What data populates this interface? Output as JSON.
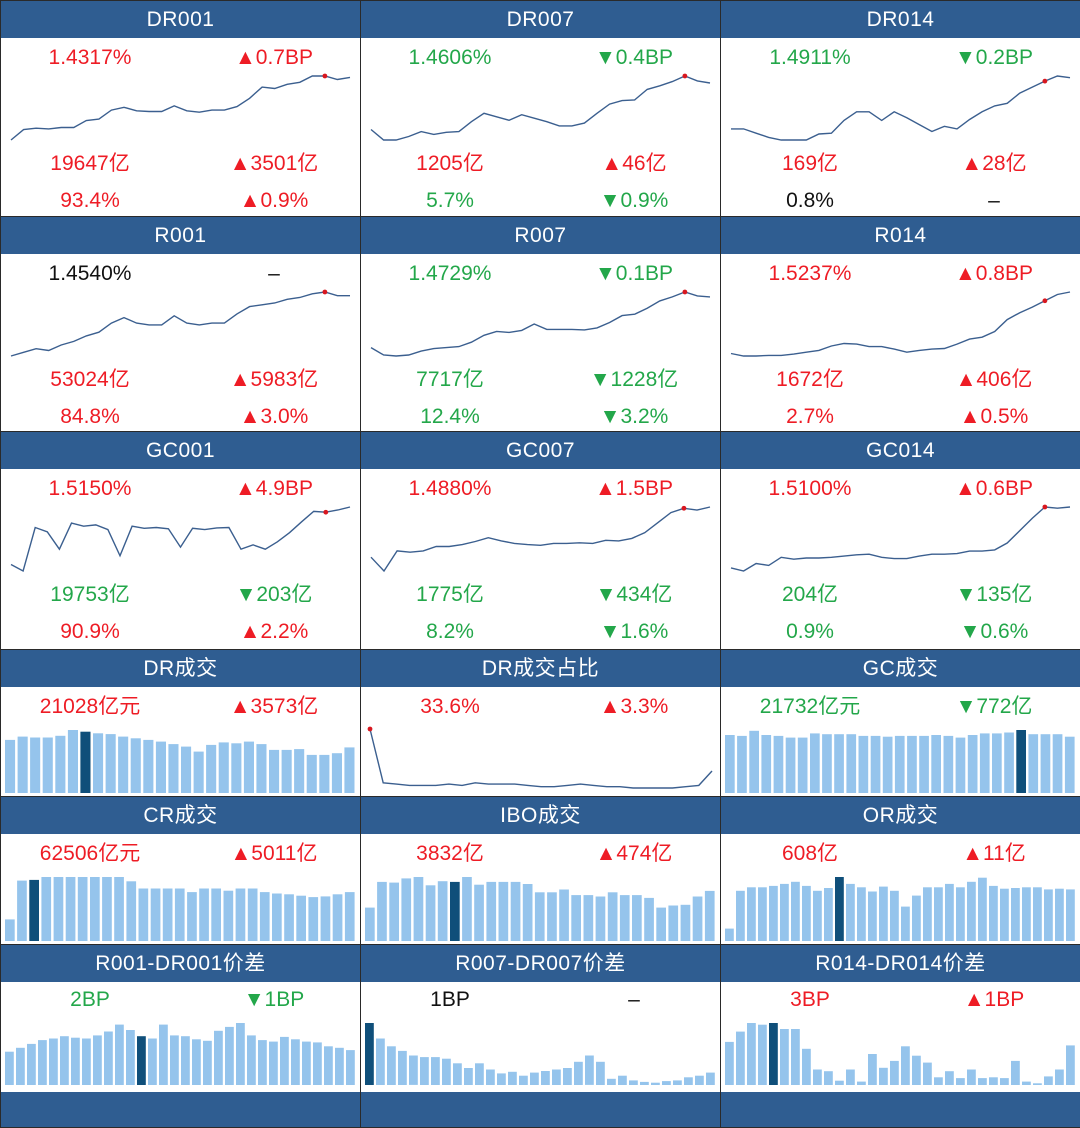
{
  "colors": {
    "header_bg": "#2f5d91",
    "up": "#ee1c25",
    "down": "#23a74a",
    "neutral": "#111111",
    "line": "#3b5f8f",
    "bar": "#95c4ec",
    "bar_highlight": "#0f4f7a",
    "marker": "#d8171f"
  },
  "rate_panels": [
    {
      "title": "DR001",
      "rate": "1.4317%",
      "rate_color": "red",
      "rate_change": "▲0.7BP",
      "rate_change_color": "red",
      "volume": "19647亿",
      "volume_color": "red",
      "volume_change": "▲3501亿",
      "volume_change_color": "red",
      "share": "93.4%",
      "share_color": "red",
      "share_change": "▲0.9%",
      "share_change_color": "red",
      "trend": [
        1.37,
        1.385,
        1.387,
        1.386,
        1.388,
        1.388,
        1.398,
        1.4,
        1.413,
        1.417,
        1.412,
        1.411,
        1.411,
        1.419,
        1.412,
        1.41,
        1.413,
        1.413,
        1.418,
        1.43,
        1.446,
        1.444,
        1.45,
        1.453,
        1.462,
        1.462,
        1.457,
        1.46
      ]
    },
    {
      "title": "DR007",
      "rate": "1.4606%",
      "rate_color": "green",
      "rate_change": "▼0.4BP",
      "rate_change_color": "green",
      "volume": "1205亿",
      "volume_color": "red",
      "volume_change": "▲46亿",
      "volume_change_color": "red",
      "share": "5.7%",
      "share_color": "green",
      "share_change": "▼0.9%",
      "share_change_color": "green",
      "trend": [
        1.387,
        1.372,
        1.372,
        1.377,
        1.384,
        1.38,
        1.383,
        1.384,
        1.398,
        1.41,
        1.405,
        1.4,
        1.408,
        1.403,
        1.398,
        1.392,
        1.392,
        1.396,
        1.41,
        1.423,
        1.428,
        1.429,
        1.444,
        1.449,
        1.455,
        1.463,
        1.456,
        1.453
      ]
    },
    {
      "title": "DR014",
      "rate": "1.4911%",
      "rate_color": "green",
      "rate_change": "▼0.2BP",
      "rate_change_color": "green",
      "volume": "169亿",
      "volume_color": "red",
      "volume_change": "▲28亿",
      "volume_change_color": "red",
      "share": "0.8%",
      "share_color": "black",
      "share_change": "–",
      "share_change_color": "black",
      "trend": [
        1.413,
        1.413,
        1.408,
        1.403,
        1.4,
        1.4,
        1.4,
        1.407,
        1.408,
        1.423,
        1.433,
        1.433,
        1.423,
        1.433,
        1.426,
        1.418,
        1.41,
        1.416,
        1.413,
        1.424,
        1.433,
        1.44,
        1.443,
        1.455,
        1.462,
        1.469,
        1.475,
        1.473
      ]
    },
    {
      "title": "R001",
      "rate": "1.4540%",
      "rate_color": "black",
      "rate_change": "–",
      "rate_change_color": "black",
      "volume": "53024亿",
      "volume_color": "red",
      "volume_change": "▲5983亿",
      "volume_change_color": "red",
      "share": "84.8%",
      "share_color": "red",
      "share_change": "▲3.0%",
      "share_change_color": "red",
      "trend": [
        1.3,
        1.31,
        1.32,
        1.315,
        1.33,
        1.34,
        1.355,
        1.365,
        1.39,
        1.405,
        1.39,
        1.385,
        1.385,
        1.41,
        1.39,
        1.385,
        1.39,
        1.39,
        1.415,
        1.435,
        1.44,
        1.445,
        1.455,
        1.46,
        1.47,
        1.475,
        1.465,
        1.465
      ]
    },
    {
      "title": "R007",
      "rate": "1.4729%",
      "rate_color": "green",
      "rate_change": "▼0.1BP",
      "rate_change_color": "green",
      "volume": "7717亿",
      "volume_color": "green",
      "volume_change": "▼1228亿",
      "volume_change_color": "green",
      "share": "12.4%",
      "share_color": "green",
      "share_change": "▼3.2%",
      "share_change_color": "green",
      "trend": [
        1.345,
        1.33,
        1.328,
        1.33,
        1.338,
        1.343,
        1.345,
        1.347,
        1.356,
        1.37,
        1.378,
        1.376,
        1.38,
        1.393,
        1.382,
        1.382,
        1.382,
        1.381,
        1.385,
        1.396,
        1.41,
        1.413,
        1.425,
        1.44,
        1.448,
        1.458,
        1.45,
        1.448
      ]
    },
    {
      "title": "R014",
      "rate": "1.5237%",
      "rate_color": "red",
      "rate_change": "▲0.8BP",
      "rate_change_color": "red",
      "volume": "1672亿",
      "volume_color": "red",
      "volume_change": "▲406亿",
      "volume_change_color": "red",
      "share": "2.7%",
      "share_color": "red",
      "share_change": "▲0.5%",
      "share_change_color": "red",
      "trend": [
        1.432,
        1.428,
        1.428,
        1.429,
        1.429,
        1.431,
        1.434,
        1.437,
        1.444,
        1.448,
        1.447,
        1.443,
        1.443,
        1.439,
        1.434,
        1.437,
        1.439,
        1.44,
        1.447,
        1.455,
        1.458,
        1.467,
        1.486,
        1.497,
        1.506,
        1.516,
        1.526,
        1.53
      ]
    },
    {
      "title": "GC001",
      "rate": "1.5150%",
      "rate_color": "red",
      "rate_change": "▲4.9BP",
      "rate_change_color": "red",
      "volume": "19753亿",
      "volume_color": "green",
      "volume_change": "▼203亿",
      "volume_change_color": "green",
      "share": "90.9%",
      "share_color": "red",
      "share_change": "▲2.2%",
      "share_change_color": "red",
      "trend": [
        1.34,
        1.325,
        1.425,
        1.415,
        1.375,
        1.435,
        1.428,
        1.431,
        1.42,
        1.36,
        1.428,
        1.423,
        1.425,
        1.422,
        1.38,
        1.423,
        1.42,
        1.424,
        1.425,
        1.375,
        1.385,
        1.375,
        1.392,
        1.413,
        1.438,
        1.462,
        1.46,
        1.465,
        1.472
      ]
    },
    {
      "title": "GC007",
      "rate": "1.4880%",
      "rate_color": "red",
      "rate_change": "▲1.5BP",
      "rate_change_color": "red",
      "volume": "1775亿",
      "volume_color": "green",
      "volume_change": "▼434亿",
      "volume_change_color": "green",
      "share": "8.2%",
      "share_color": "green",
      "share_change": "▼1.6%",
      "share_change_color": "green",
      "trend": [
        1.37,
        1.348,
        1.38,
        1.378,
        1.38,
        1.387,
        1.387,
        1.39,
        1.395,
        1.401,
        1.396,
        1.392,
        1.39,
        1.389,
        1.392,
        1.392,
        1.393,
        1.392,
        1.397,
        1.396,
        1.4,
        1.409,
        1.425,
        1.441,
        1.448,
        1.445,
        1.45
      ]
    },
    {
      "title": "GC014",
      "rate": "1.5100%",
      "rate_color": "red",
      "rate_change": "▲0.6BP",
      "rate_change_color": "red",
      "volume": "204亿",
      "volume_color": "green",
      "volume_change": "▼135亿",
      "volume_change_color": "green",
      "share": "0.9%",
      "share_color": "green",
      "share_change": "▼0.6%",
      "share_change_color": "green",
      "trend": [
        1.37,
        1.365,
        1.377,
        1.374,
        1.387,
        1.384,
        1.386,
        1.386,
        1.387,
        1.389,
        1.391,
        1.392,
        1.387,
        1.385,
        1.385,
        1.389,
        1.392,
        1.392,
        1.393,
        1.397,
        1.397,
        1.399,
        1.41,
        1.43,
        1.45,
        1.468,
        1.466,
        1.468
      ]
    }
  ],
  "volume_panels": [
    {
      "title": "DR成交",
      "value": "21028亿元",
      "value_color": "red",
      "change": "▲3573亿",
      "change_color": "red",
      "kind": "bar",
      "highlight": 6,
      "series": [
        64,
        68,
        67,
        67,
        69,
        76,
        74,
        72,
        71,
        68,
        66,
        64,
        62,
        59,
        56,
        50,
        58,
        61,
        60,
        62,
        59,
        52,
        52,
        53,
        46,
        46,
        48,
        55
      ]
    },
    {
      "title": "DR成交占比",
      "value": "33.6%",
      "value_color": "red",
      "change": "▲3.3%",
      "change_color": "red",
      "kind": "line",
      "highlight": 0,
      "series": [
        52,
        11,
        10,
        9,
        9,
        9,
        10,
        9,
        11,
        10,
        10,
        10,
        9,
        8,
        8,
        9,
        10,
        9,
        8,
        8,
        7,
        7,
        7,
        7,
        8,
        9,
        20
      ]
    },
    {
      "title": "GC成交",
      "value": "21732亿元",
      "value_color": "green",
      "change": "▼772亿",
      "change_color": "green",
      "kind": "bar",
      "highlight": 24,
      "series": [
        69,
        68,
        74,
        69,
        68,
        66,
        66,
        71,
        70,
        70,
        70,
        68,
        68,
        67,
        68,
        68,
        68,
        69,
        68,
        66,
        69,
        71,
        71,
        72,
        75,
        70,
        70,
        70,
        67
      ]
    },
    {
      "title": "CR成交",
      "value": "62506亿元",
      "value_color": "red",
      "change": "▲5011亿",
      "change_color": "red",
      "kind": "bar",
      "highlight": 2,
      "series": [
        30,
        84,
        85,
        89,
        89,
        89,
        89,
        89,
        89,
        89,
        83,
        73,
        73,
        73,
        73,
        68,
        73,
        73,
        70,
        73,
        73,
        68,
        66,
        65,
        63,
        61,
        62,
        65,
        68
      ]
    },
    {
      "title": "IBO成交",
      "value": "3832亿",
      "value_color": "red",
      "change": "▲474亿",
      "change_color": "red",
      "kind": "bar",
      "highlight": 7,
      "series": [
        48,
        85,
        84,
        90,
        92,
        80,
        86,
        85,
        92,
        81,
        85,
        85,
        85,
        82,
        70,
        70,
        74,
        66,
        66,
        64,
        70,
        66,
        66,
        62,
        48,
        51,
        52,
        64,
        72
      ]
    },
    {
      "title": "OR成交",
      "value": "608亿",
      "value_color": "red",
      "change": "▲11亿",
      "change_color": "red",
      "kind": "bar",
      "highlight": 10,
      "series": [
        18,
        73,
        78,
        78,
        80,
        83,
        86,
        80,
        73,
        77,
        93,
        83,
        78,
        72,
        79,
        73,
        50,
        66,
        78,
        78,
        83,
        78,
        86,
        92,
        80,
        76,
        77,
        78,
        78,
        75,
        76,
        75
      ]
    }
  ],
  "spread_panels": [
    {
      "title": "R001-DR001价差",
      "value": "2BP",
      "value_color": "green",
      "change": "▼1BP",
      "change_color": "green",
      "highlight": 12,
      "series": [
        43,
        48,
        53,
        58,
        60,
        63,
        61,
        60,
        64,
        69,
        78,
        71,
        63,
        60,
        78,
        64,
        63,
        59,
        57,
        70,
        75,
        80,
        64,
        58,
        56,
        62,
        59,
        56,
        55,
        50,
        48,
        45
      ]
    },
    {
      "title": "R007-DR007价差",
      "value": "1BP",
      "value_color": "black",
      "change": "–",
      "change_color": "black",
      "highlight": 0,
      "series": [
        80,
        60,
        50,
        44,
        38,
        36,
        36,
        34,
        28,
        22,
        28,
        20,
        15,
        17,
        12,
        16,
        18,
        20,
        22,
        30,
        38,
        30,
        8,
        12,
        6,
        4,
        3,
        5,
        6,
        10,
        12,
        16
      ]
    },
    {
      "title": "R014-DR014价差",
      "value": "3BP",
      "value_color": "red",
      "change": "▲1BP",
      "change_color": "red",
      "highlight": 4,
      "series": [
        50,
        62,
        72,
        70,
        72,
        65,
        65,
        42,
        18,
        16,
        5,
        18,
        4,
        36,
        20,
        28,
        45,
        34,
        26,
        9,
        16,
        8,
        18,
        8,
        9,
        8,
        28,
        4,
        2,
        10,
        18,
        46
      ]
    }
  ]
}
